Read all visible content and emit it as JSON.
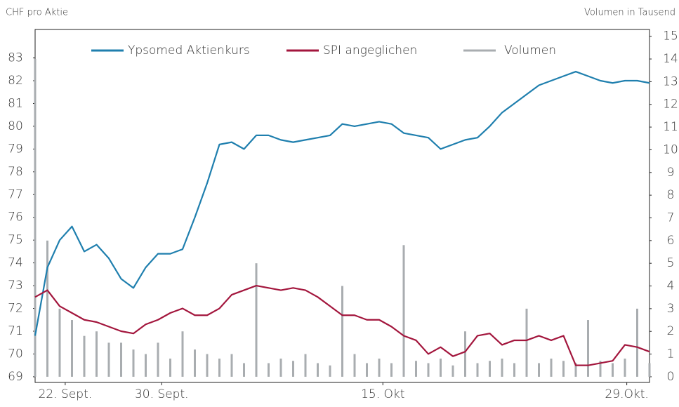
{
  "chart_data": {
    "type": "line",
    "y_label": "CHF pro Aktie",
    "y2_label": "Volumen in Tausend",
    "x": [
      0,
      2,
      4,
      6,
      8,
      10,
      12,
      14,
      16,
      18,
      20,
      22,
      24,
      26,
      28,
      30,
      32,
      34,
      36,
      38,
      40,
      42,
      44,
      46,
      48,
      50,
      52,
      54,
      56,
      58,
      60,
      62,
      64,
      66,
      68,
      70,
      72,
      74,
      76,
      78,
      80,
      82,
      84,
      86,
      88,
      90,
      92,
      94,
      96,
      98,
      100
    ],
    "xlim": [
      0,
      100
    ],
    "xticks": [
      {
        "value": 4.9,
        "label": "22. Sept."
      },
      {
        "value": 20.6,
        "label": "30. Sept."
      },
      {
        "value": 56.6,
        "label": "15. Okt"
      },
      {
        "value": 96.3,
        "label": "29.Okt."
      }
    ],
    "ylim": [
      68.75,
      84.25
    ],
    "yticks": [
      69,
      70,
      71,
      72,
      73,
      74,
      75,
      76,
      77,
      78,
      79,
      80,
      81,
      82,
      83
    ],
    "y2lim": [
      -0.25,
      15.3
    ],
    "y2ticks": [
      0,
      1,
      2,
      3,
      4,
      5,
      6,
      7,
      8,
      9,
      10,
      11,
      12,
      13,
      14,
      15
    ],
    "legend": "top",
    "series": [
      {
        "name": "Ypsomed Aktienkurs",
        "color": "#1f7fae",
        "kind": "line",
        "values": [
          70.8,
          73.8,
          75.0,
          75.6,
          74.5,
          74.8,
          74.2,
          73.3,
          72.9,
          73.8,
          74.4,
          74.4,
          74.6,
          76.0,
          77.5,
          79.2,
          79.3,
          79.0,
          79.6,
          79.6,
          79.4,
          79.3,
          79.4,
          79.5,
          79.6,
          80.1,
          80.0,
          80.1,
          80.2,
          80.1,
          79.7,
          79.6,
          79.5,
          79.0,
          79.2,
          79.4,
          79.5,
          80.0,
          80.6,
          81.0,
          81.4,
          81.8,
          82.0,
          82.2,
          82.4,
          82.2,
          82.0,
          81.9,
          82.0,
          82.0,
          81.9
        ]
      },
      {
        "name": "SPI angeglichen",
        "color": "#a3163d",
        "kind": "line",
        "values": [
          72.5,
          72.8,
          72.1,
          71.8,
          71.5,
          71.4,
          71.2,
          71.0,
          70.9,
          71.3,
          71.5,
          71.8,
          72.0,
          71.7,
          71.7,
          72.0,
          72.6,
          72.8,
          73.0,
          72.9,
          72.8,
          72.9,
          72.8,
          72.5,
          72.1,
          71.7,
          71.7,
          71.5,
          71.5,
          71.2,
          70.8,
          70.6,
          70.0,
          70.3,
          69.9,
          70.1,
          70.8,
          70.9,
          70.4,
          70.6,
          70.6,
          70.8,
          70.6,
          70.8,
          69.5,
          69.5,
          69.6,
          69.7,
          70.4,
          70.3,
          70.1
        ]
      },
      {
        "name": "Volumen",
        "color": "#a9adb0",
        "kind": "bar",
        "axis": "y2",
        "values": [
          14,
          6,
          3,
          2.5,
          1.8,
          2,
          1.5,
          1.5,
          1.2,
          1.0,
          1.5,
          0.8,
          2,
          1.2,
          1,
          0.8,
          1,
          0.6,
          5,
          0.6,
          0.8,
          0.7,
          1,
          0.6,
          0.5,
          4,
          1,
          0.6,
          0.8,
          0.6,
          5.8,
          0.7,
          0.6,
          0.8,
          0.5,
          2,
          0.6,
          0.7,
          0.8,
          0.6,
          3,
          0.6,
          0.8,
          0.7,
          0.6,
          2.5,
          0.7,
          0.6,
          0.8,
          3,
          0.6
        ]
      }
    ]
  }
}
